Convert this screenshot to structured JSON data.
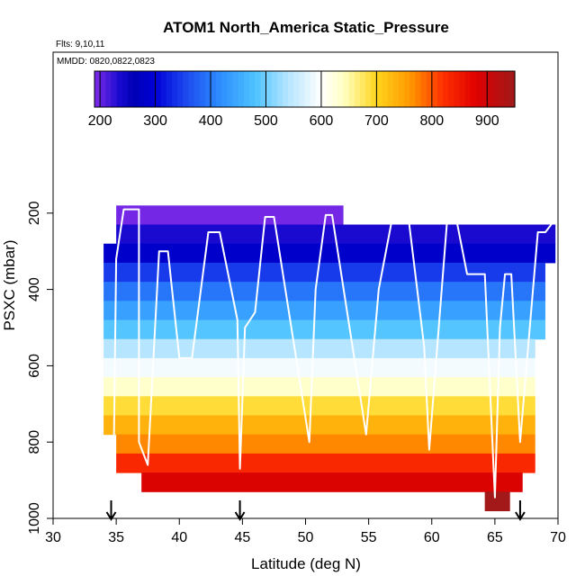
{
  "chart_data": {
    "type": "heatmap",
    "title": "ATOM1 North_America Static_Pressure",
    "flights_label": "Flts: 9,10,11",
    "dates_label": "MMDD: 0820,0822,0823",
    "xlabel": "Latitude (deg N)",
    "ylabel": "PSXC (mbar)",
    "xlim": [
      30,
      70
    ],
    "ylim": [
      1000,
      0
    ],
    "x_ticks": [
      30,
      35,
      40,
      45,
      50,
      55,
      60,
      65,
      70
    ],
    "y_ticks": [
      200,
      400,
      600,
      800,
      1000
    ],
    "colorbar": {
      "range": [
        190,
        950
      ],
      "ticks": [
        200,
        300,
        400,
        500,
        600,
        700,
        800,
        900
      ],
      "stops": [
        {
          "value": 190,
          "color": "#7f2be8"
        },
        {
          "value": 235,
          "color": "#1a0ad0"
        },
        {
          "value": 260,
          "color": "#0000b4"
        },
        {
          "value": 300,
          "color": "#0000d8"
        },
        {
          "value": 360,
          "color": "#1e4ef0"
        },
        {
          "value": 420,
          "color": "#2e90ff"
        },
        {
          "value": 480,
          "color": "#4cc2ff"
        },
        {
          "value": 540,
          "color": "#b6e6ff"
        },
        {
          "value": 600,
          "color": "#ffffff"
        },
        {
          "value": 640,
          "color": "#ffffc4"
        },
        {
          "value": 700,
          "color": "#ffd51c"
        },
        {
          "value": 760,
          "color": "#ff9900"
        },
        {
          "value": 820,
          "color": "#ff3000"
        },
        {
          "value": 880,
          "color": "#e00000"
        },
        {
          "value": 950,
          "color": "#9e1a1a"
        }
      ]
    },
    "heatmap_rows": [
      {
        "p": 180,
        "x0": 35.0,
        "x1": 53.0,
        "value": 195
      },
      {
        "p": 230,
        "x0": 35.0,
        "x1": 69.8,
        "value": 235
      },
      {
        "p": 280,
        "x0": 34.0,
        "x1": 69.8,
        "value": 285
      },
      {
        "p": 330,
        "x0": 34.0,
        "x1": 69.0,
        "value": 345
      },
      {
        "p": 380,
        "x0": 34.0,
        "x1": 69.0,
        "value": 395
      },
      {
        "p": 430,
        "x0": 34.0,
        "x1": 69.0,
        "value": 440
      },
      {
        "p": 480,
        "x0": 34.0,
        "x1": 69.0,
        "value": 485
      },
      {
        "p": 530,
        "x0": 34.0,
        "x1": 68.2,
        "value": 540
      },
      {
        "p": 580,
        "x0": 34.0,
        "x1": 68.2,
        "value": 590
      },
      {
        "p": 630,
        "x0": 34.0,
        "x1": 68.2,
        "value": 635
      },
      {
        "p": 680,
        "x0": 34.0,
        "x1": 68.2,
        "value": 690
      },
      {
        "p": 730,
        "x0": 34.0,
        "x1": 68.2,
        "value": 735
      },
      {
        "p": 780,
        "x0": 35.0,
        "x1": 68.2,
        "value": 770
      },
      {
        "p": 830,
        "x0": 35.0,
        "x1": 68.2,
        "value": 830
      },
      {
        "p": 880,
        "x0": 37.0,
        "x1": 67.2,
        "value": 885
      },
      {
        "p": 930,
        "x0": 64.2,
        "x1": 66.2,
        "value": 945
      }
    ],
    "flight_track": [
      [
        34.8,
        850
      ],
      [
        35.0,
        320
      ],
      [
        35.6,
        190
      ],
      [
        36.8,
        190
      ],
      [
        36.8,
        800
      ],
      [
        37.5,
        860
      ],
      [
        38.4,
        300
      ],
      [
        39.1,
        300
      ],
      [
        40.0,
        580
      ],
      [
        41.0,
        580
      ],
      [
        42.3,
        250
      ],
      [
        43.2,
        250
      ],
      [
        44.6,
        480
      ],
      [
        44.8,
        870
      ],
      [
        45.2,
        500
      ],
      [
        46.0,
        460
      ],
      [
        46.8,
        210
      ],
      [
        47.5,
        210
      ],
      [
        50.3,
        800
      ],
      [
        50.8,
        400
      ],
      [
        51.6,
        205
      ],
      [
        52.1,
        205
      ],
      [
        54.8,
        780
      ],
      [
        55.8,
        400
      ],
      [
        56.8,
        225
      ],
      [
        58.2,
        225
      ],
      [
        59.4,
        550
      ],
      [
        59.8,
        820
      ],
      [
        61.2,
        225
      ],
      [
        62.0,
        225
      ],
      [
        62.8,
        360
      ],
      [
        64.2,
        360
      ],
      [
        65.0,
        945
      ],
      [
        65.4,
        500
      ],
      [
        65.8,
        360
      ],
      [
        66.3,
        360
      ],
      [
        67.0,
        800
      ],
      [
        68.4,
        250
      ],
      [
        69.0,
        250
      ],
      [
        69.8,
        215
      ]
    ],
    "marker_arrows_x": [
      34.6,
      44.8,
      67.0
    ]
  }
}
